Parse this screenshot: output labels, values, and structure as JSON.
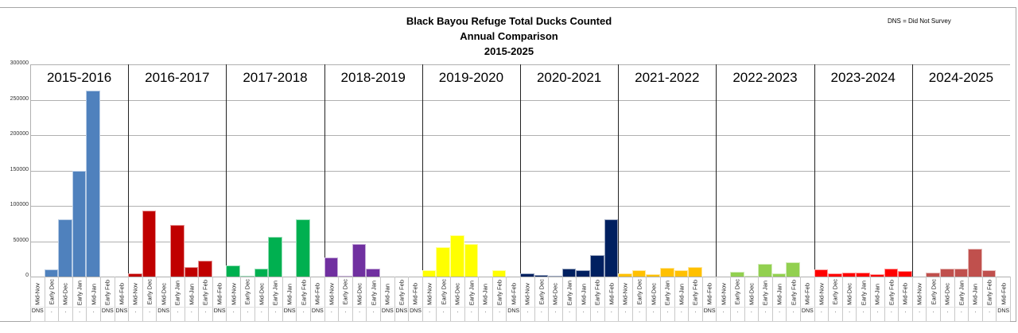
{
  "header": {
    "title_lines": [
      "Black Bayou Refuge Total Ducks Counted",
      "Annual Comparison",
      "2015-2025"
    ],
    "dns_note": "DNS = Did Not Survey"
  },
  "axis": {
    "y_ticks": [
      "300000",
      "250000",
      "200000",
      "150000",
      "100000",
      "50000",
      "0"
    ]
  },
  "chart_data": {
    "type": "bar",
    "title": "Black Bayou Refuge Total Ducks Counted — Annual Comparison 2015-2025",
    "xlabel": "",
    "ylabel": "",
    "ylim": [
      0,
      300000
    ],
    "y_ticks": [
      0,
      50000,
      100000,
      150000,
      200000,
      250000,
      300000
    ],
    "grid": true,
    "legend": "none",
    "annotation": "DNS = Did Not Survey",
    "periods": [
      "Mid-Nov",
      "Early Dec",
      "Mid-Dec",
      "Early Jan",
      "Mid-Jan",
      "Early Feb",
      "Mid-Feb"
    ],
    "series": [
      {
        "name": "2015-2016",
        "color": "#4f81bd",
        "values": [
          null,
          10000,
          81000,
          150000,
          263000,
          null,
          null
        ],
        "flags": [
          "DNS",
          ".",
          ".",
          ".",
          ".",
          "DNS",
          "DNS"
        ]
      },
      {
        "name": "2016-2017",
        "color": "#c00000",
        "values": [
          4000,
          93000,
          null,
          73000,
          13000,
          22000,
          null
        ],
        "flags": [
          ".",
          ".",
          "DNS",
          ".",
          ".",
          ".",
          "DNS"
        ]
      },
      {
        "name": "2017-2018",
        "color": "#00b050",
        "values": [
          16000,
          1000,
          11000,
          56000,
          null,
          81000,
          null
        ],
        "flags": [
          ".",
          ".",
          ".",
          ".",
          "DNS",
          ".",
          "DNS"
        ]
      },
      {
        "name": "2018-2019",
        "color": "#7030a0",
        "values": [
          27000,
          1500,
          46000,
          11000,
          null,
          null,
          null
        ],
        "flags": [
          ".",
          ".",
          ".",
          ".",
          "DNS",
          "DNS",
          "DNS"
        ]
      },
      {
        "name": "2019-2020",
        "color": "#ffff00",
        "values": [
          9000,
          42000,
          59000,
          46000,
          0,
          9000,
          null
        ],
        "flags": [
          ".",
          ".",
          ".",
          ".",
          ".",
          ".",
          "DNS"
        ]
      },
      {
        "name": "2020-2021",
        "color": "#002060",
        "values": [
          5000,
          2500,
          1000,
          11000,
          9000,
          30000,
          81000
        ],
        "flags": [
          ".",
          ".",
          ".",
          ".",
          ".",
          ".",
          "."
        ]
      },
      {
        "name": "2021-2022",
        "color": "#ffc000",
        "values": [
          5000,
          9000,
          3500,
          12000,
          9000,
          14000,
          null
        ],
        "flags": [
          ".",
          ".",
          ".",
          ".",
          ".",
          ".",
          "DNS"
        ]
      },
      {
        "name": "2022-2023",
        "color": "#92d050",
        "values": [
          0,
          7000,
          1000,
          18000,
          4500,
          20000,
          null
        ],
        "flags": [
          ".",
          ".",
          ".",
          ".",
          ".",
          ".",
          "DNS"
        ]
      },
      {
        "name": "2023-2024",
        "color": "#ff0000",
        "values": [
          10000,
          5000,
          5500,
          6000,
          3500,
          11500,
          7500
        ],
        "flags": [
          ".",
          ".",
          ".",
          ".",
          ".",
          ".",
          "."
        ]
      },
      {
        "name": "2024-2025",
        "color": "#c0504d",
        "values": [
          0,
          6000,
          11000,
          11000,
          39000,
          9000,
          null
        ],
        "flags": [
          ".",
          ".",
          ".",
          ".",
          ".",
          ".",
          "DNS"
        ]
      }
    ]
  }
}
